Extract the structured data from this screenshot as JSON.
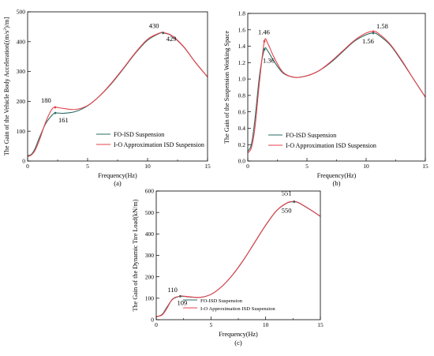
{
  "colors": {
    "fo": "#2a6b63",
    "io": "#e8414b"
  },
  "chart_data": [
    {
      "type": "line",
      "caption": "(a)",
      "xlabel": "Frequency(Hz)",
      "ylabel_pre": "The Gain of the Vehicle Body Acceleration[(m/s",
      "ylabel_sup": "2",
      "ylabel_post": ")/m]",
      "xlim": [
        0,
        15
      ],
      "ylim": [
        0,
        500
      ],
      "xticks": [
        "0",
        "5",
        "10",
        "15"
      ],
      "yticks": [
        "0",
        "100",
        "200",
        "300",
        "400",
        "500"
      ],
      "legend": [
        "FO-ISD Suspension",
        "I-O Approximation ISD Suspension"
      ],
      "series": [
        {
          "name": "FO-ISD Suspension",
          "x": [
            0,
            0.3,
            0.6,
            1.0,
            1.5,
            2.0,
            2.3,
            3.0,
            4.0,
            5.0,
            6.0,
            7.0,
            8.0,
            9.0,
            10.0,
            11.0,
            11.3,
            12.0,
            13.0,
            14.0,
            15.0
          ],
          "y": [
            18,
            22,
            40,
            80,
            125,
            152,
            161,
            160,
            166,
            185,
            218,
            260,
            310,
            362,
            405,
            428,
            429,
            420,
            383,
            330,
            282
          ]
        },
        {
          "name": "I-O Approximation ISD Suspension",
          "x": [
            0,
            0.3,
            0.6,
            1.0,
            1.5,
            2.0,
            2.3,
            3.0,
            4.0,
            5.0,
            6.0,
            7.0,
            8.0,
            9.0,
            10.0,
            11.0,
            11.3,
            12.0,
            13.0,
            14.0,
            15.0
          ],
          "y": [
            15,
            20,
            34,
            72,
            130,
            172,
            180,
            176,
            173,
            186,
            218,
            262,
            312,
            364,
            408,
            429,
            430,
            421,
            384,
            330,
            282
          ]
        }
      ],
      "annotations": [
        {
          "label": "430",
          "x": 11.3,
          "y": 430
        },
        {
          "label": "429",
          "x": 11.3,
          "y": 429
        },
        {
          "label": "180",
          "x": 2.3,
          "y": 180
        },
        {
          "label": "161",
          "x": 2.3,
          "y": 161
        }
      ]
    },
    {
      "type": "line",
      "caption": "(b)",
      "xlabel": "Frequency(Hz)",
      "ylabel": "The Gain of the Suspension Working Space",
      "xlim": [
        0,
        15
      ],
      "ylim": [
        0,
        1.8
      ],
      "xticks": [
        "0",
        "5",
        "10",
        "15"
      ],
      "yticks": [
        "0.0",
        "0.2",
        "0.4",
        "0.6",
        "0.8",
        "1.0",
        "1.2",
        "1.4",
        "1.6",
        "1.8"
      ],
      "legend": [
        "FO-ISD Suspension",
        "I-O Approximation ISD Suspension"
      ],
      "series": [
        {
          "name": "FO-ISD Suspension",
          "x": [
            0,
            0.3,
            0.6,
            1.0,
            1.4,
            1.7,
            2.2,
            3.0,
            4.0,
            5.0,
            6.0,
            7.0,
            8.0,
            9.0,
            10.0,
            10.6,
            11.0,
            12.0,
            13.0,
            14.0,
            15.0
          ],
          "y": [
            0.12,
            0.2,
            0.5,
            1.05,
            1.36,
            1.34,
            1.22,
            1.07,
            1.02,
            1.04,
            1.1,
            1.2,
            1.33,
            1.46,
            1.54,
            1.56,
            1.54,
            1.42,
            1.22,
            1.0,
            0.78
          ]
        },
        {
          "name": "I-O Approximation ISD Suspension",
          "x": [
            0,
            0.3,
            0.6,
            1.0,
            1.4,
            1.7,
            2.2,
            3.0,
            4.0,
            5.0,
            6.0,
            7.0,
            8.0,
            9.0,
            10.0,
            10.6,
            11.0,
            12.0,
            13.0,
            14.0,
            15.0
          ],
          "y": [
            0.1,
            0.16,
            0.4,
            0.98,
            1.46,
            1.43,
            1.27,
            1.08,
            1.02,
            1.04,
            1.1,
            1.21,
            1.34,
            1.47,
            1.56,
            1.58,
            1.56,
            1.43,
            1.23,
            1.0,
            0.78
          ]
        }
      ],
      "annotations": [
        {
          "label": "1.46",
          "x": 1.4,
          "y": 1.46
        },
        {
          "label": "1.36",
          "x": 1.4,
          "y": 1.36
        },
        {
          "label": "1.58",
          "x": 10.6,
          "y": 1.58
        },
        {
          "label": "1.56",
          "x": 10.6,
          "y": 1.56
        }
      ]
    },
    {
      "type": "line",
      "caption": "(c)",
      "xlabel": "Frequency(Hz)",
      "ylabel": "The Gain of the Dynamic Tire Load(kN/m)",
      "xlim": [
        0,
        15
      ],
      "ylim": [
        0,
        600
      ],
      "xticks": [
        "0",
        "5",
        "10",
        "15"
      ],
      "yticks": [
        "0",
        "100",
        "200",
        "300",
        "400",
        "500",
        "600"
      ],
      "legend": [
        "FO-ISD Suspension",
        "I-O Approximation ISD Suspension"
      ],
      "series": [
        {
          "name": "FO-ISD Suspension",
          "x": [
            0,
            0.3,
            0.6,
            1.0,
            1.5,
            2.2,
            3.0,
            4.0,
            5.0,
            6.0,
            7.0,
            8.0,
            9.0,
            10.0,
            11.0,
            12.0,
            12.6,
            13.0,
            14.0,
            15.0
          ],
          "y": [
            15,
            18,
            28,
            60,
            95,
            109,
            106,
            104,
            118,
            155,
            210,
            280,
            360,
            440,
            508,
            545,
            550,
            545,
            515,
            482
          ]
        },
        {
          "name": "I-O Approximation ISD Suspension",
          "x": [
            0,
            0.3,
            0.6,
            1.0,
            1.5,
            2.2,
            3.0,
            4.0,
            5.0,
            6.0,
            7.0,
            8.0,
            9.0,
            10.0,
            11.0,
            12.0,
            12.6,
            13.0,
            14.0,
            15.0
          ],
          "y": [
            14,
            17,
            25,
            55,
            97,
            110,
            107,
            104,
            118,
            155,
            211,
            281,
            361,
            441,
            509,
            546,
            551,
            546,
            516,
            482
          ]
        }
      ],
      "annotations": [
        {
          "label": "110",
          "x": 2.2,
          "y": 110
        },
        {
          "label": "109",
          "x": 2.2,
          "y": 109
        },
        {
          "label": "551",
          "x": 12.6,
          "y": 551
        },
        {
          "label": "550",
          "x": 12.6,
          "y": 550
        }
      ]
    }
  ]
}
